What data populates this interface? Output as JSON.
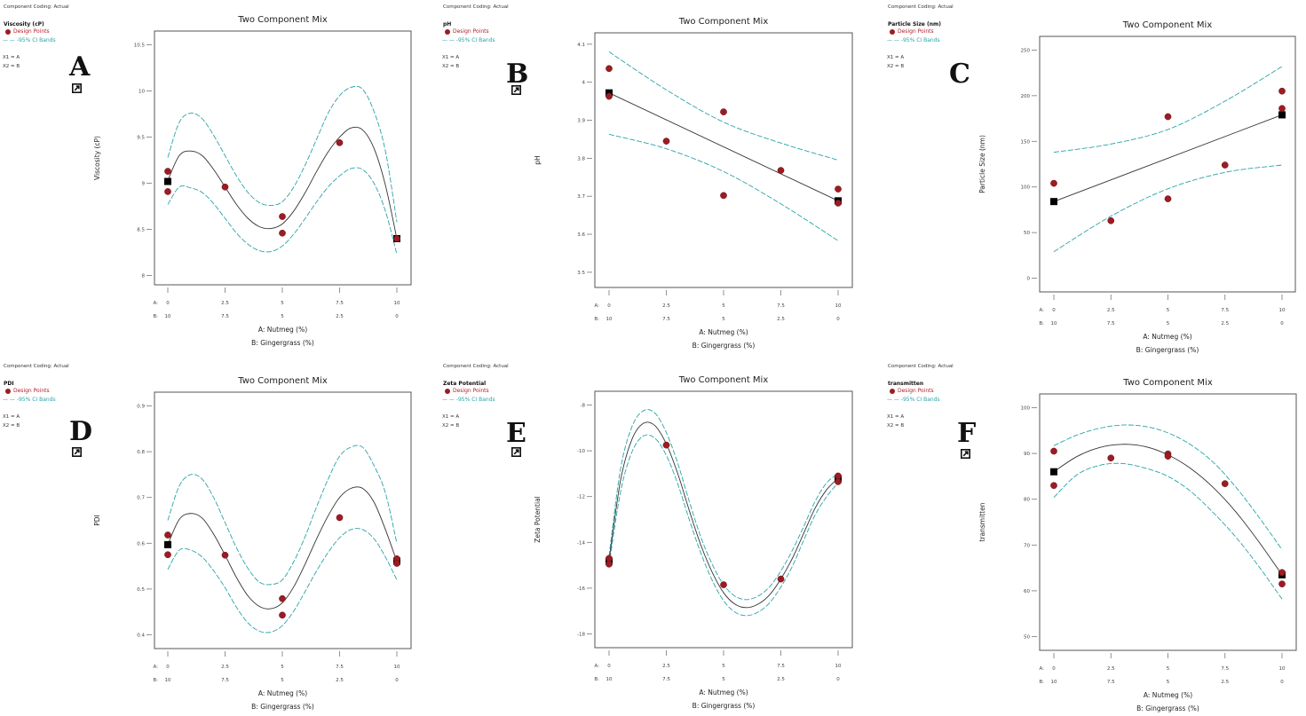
{
  "common": {
    "coding": "Component Coding: Actual",
    "design_points": "Design Points",
    "ci_bands": "-95% CI Bands",
    "x1": "X1 = A",
    "x2": "X2 = B",
    "title": "Two Component Mix",
    "xlabel_a": "A: Nutmeg (%)",
    "xlabel_b": "B: Gingergrass (%)",
    "a_prefix": "A:",
    "b_prefix": "B:",
    "a_ticks": [
      "0",
      "2.5",
      "5",
      "7.5",
      "10"
    ],
    "b_ticks": [
      "10",
      "7.5",
      "5",
      "2.5",
      "0"
    ]
  },
  "colors": {
    "points": "#9c1c24",
    "ci": "#2aa3a8",
    "fit": "#333333",
    "square": "#000000"
  },
  "chart_data": [
    {
      "id": "A",
      "type": "line",
      "letter": "A",
      "response": "Viscosity (cP)",
      "ylabel": "Viscosity (cP)",
      "ylim": [
        7.9,
        10.65
      ],
      "yticks": [
        "8",
        "8.5",
        "9",
        "9.5",
        "10",
        "10.5"
      ],
      "ytick_values": [
        8,
        8.5,
        9,
        9.5,
        10,
        10.5
      ],
      "fit": {
        "x": [
          0,
          0.5,
          1,
          1.5,
          2,
          2.5,
          3,
          3.5,
          4,
          4.5,
          5,
          5.5,
          6,
          6.5,
          7,
          7.5,
          8,
          8.5,
          9,
          9.5,
          10
        ],
        "y": [
          9.03,
          9.3,
          9.35,
          9.3,
          9.15,
          8.96,
          8.77,
          8.62,
          8.53,
          8.51,
          8.56,
          8.7,
          8.9,
          9.13,
          9.34,
          9.5,
          9.6,
          9.58,
          9.38,
          8.98,
          8.4
        ]
      },
      "ci_upper": {
        "x": [
          0,
          0.5,
          1,
          1.5,
          2,
          2.5,
          3,
          3.5,
          4,
          4.5,
          5,
          5.5,
          6,
          6.5,
          7,
          7.5,
          8,
          8.5,
          9,
          9.5,
          10
        ],
        "y": [
          9.28,
          9.66,
          9.76,
          9.7,
          9.52,
          9.3,
          9.08,
          8.9,
          8.79,
          8.76,
          8.8,
          8.96,
          9.2,
          9.48,
          9.76,
          9.95,
          10.04,
          10.02,
          9.78,
          9.35,
          8.58
        ]
      },
      "ci_lower": {
        "x": [
          0,
          0.5,
          1,
          1.5,
          2,
          2.5,
          3,
          3.5,
          4,
          4.5,
          5,
          5.5,
          6,
          6.5,
          7,
          7.5,
          8,
          8.5,
          9,
          9.5,
          10
        ],
        "y": [
          8.77,
          8.96,
          8.95,
          8.9,
          8.78,
          8.62,
          8.46,
          8.34,
          8.27,
          8.26,
          8.32,
          8.45,
          8.62,
          8.8,
          8.96,
          9.08,
          9.16,
          9.15,
          9.0,
          8.7,
          8.23
        ]
      },
      "points": [
        {
          "x": 0,
          "y": 9.13
        },
        {
          "x": 0,
          "y": 8.91
        },
        {
          "x": 2.5,
          "y": 8.96
        },
        {
          "x": 5,
          "y": 8.64
        },
        {
          "x": 5,
          "y": 8.46
        },
        {
          "x": 7.5,
          "y": 9.44
        },
        {
          "x": 10,
          "y": 8.4
        }
      ],
      "squares": [
        {
          "x": 0,
          "y": 9.02
        },
        {
          "x": 10,
          "y": 8.4
        }
      ]
    },
    {
      "id": "B",
      "type": "line",
      "letter": "B",
      "response": "pH",
      "ylabel": "pH",
      "ylim": [
        3.46,
        4.13
      ],
      "yticks": [
        "3.5",
        "3.6",
        "3.7",
        "3.8",
        "3.9",
        "4",
        "4.1"
      ],
      "ytick_values": [
        3.5,
        3.6,
        3.7,
        3.8,
        3.9,
        4.0,
        4.1
      ],
      "fit": {
        "x": [
          0,
          10
        ],
        "y": [
          3.972,
          3.688
        ]
      },
      "ci_upper": {
        "x": [
          0,
          2.5,
          5,
          7.5,
          10
        ],
        "y": [
          4.08,
          3.98,
          3.895,
          3.84,
          3.795
        ]
      },
      "ci_lower": {
        "x": [
          0,
          2.5,
          5,
          7.5,
          10
        ],
        "y": [
          3.863,
          3.825,
          3.765,
          3.68,
          3.583
        ]
      },
      "points": [
        {
          "x": 0,
          "y": 4.036
        },
        {
          "x": 0,
          "y": 3.963
        },
        {
          "x": 2.5,
          "y": 3.845
        },
        {
          "x": 5,
          "y": 3.922
        },
        {
          "x": 5,
          "y": 3.702
        },
        {
          "x": 7.5,
          "y": 3.768
        },
        {
          "x": 10,
          "y": 3.719
        },
        {
          "x": 10,
          "y": 3.682
        }
      ],
      "squares": [
        {
          "x": 0,
          "y": 3.972
        },
        {
          "x": 10,
          "y": 3.688
        }
      ]
    },
    {
      "id": "C",
      "type": "line",
      "letter": "C",
      "response": "Particle Size (nm)",
      "ylabel": "Particle Size (nm)",
      "ylim": [
        -15,
        265
      ],
      "yticks": [
        "0",
        "50",
        "100",
        "150",
        "200",
        "250"
      ],
      "ytick_values": [
        0,
        50,
        100,
        150,
        200,
        250
      ],
      "fit": {
        "x": [
          0,
          10
        ],
        "y": [
          84,
          179
        ]
      },
      "ci_upper": {
        "x": [
          0,
          2.5,
          5,
          7.5,
          10
        ],
        "y": [
          138,
          147,
          163,
          194,
          232
        ]
      },
      "ci_lower": {
        "x": [
          0,
          2.5,
          5,
          7.5,
          10
        ],
        "y": [
          29,
          68,
          98,
          116,
          124
        ]
      },
      "points": [
        {
          "x": 0,
          "y": 104
        },
        {
          "x": 2.5,
          "y": 63
        },
        {
          "x": 5,
          "y": 177
        },
        {
          "x": 5,
          "y": 87
        },
        {
          "x": 7.5,
          "y": 124
        },
        {
          "x": 10,
          "y": 205
        },
        {
          "x": 10,
          "y": 186
        }
      ],
      "squares": [
        {
          "x": 0,
          "y": 84
        },
        {
          "x": 10,
          "y": 179
        }
      ]
    },
    {
      "id": "D",
      "type": "line",
      "letter": "D",
      "response": "PDI",
      "ylabel": "PDI",
      "ylim": [
        0.37,
        0.93
      ],
      "yticks": [
        "0.4",
        "0.5",
        "0.6",
        "0.7",
        "0.8",
        "0.9"
      ],
      "ytick_values": [
        0.4,
        0.5,
        0.6,
        0.7,
        0.8,
        0.9
      ],
      "fit": {
        "x": [
          0,
          0.5,
          1,
          1.5,
          2,
          2.5,
          3,
          3.5,
          4,
          4.5,
          5,
          5.5,
          6,
          6.5,
          7,
          7.5,
          8,
          8.5,
          9,
          9.5,
          10
        ],
        "y": [
          0.597,
          0.652,
          0.665,
          0.655,
          0.62,
          0.574,
          0.525,
          0.485,
          0.462,
          0.457,
          0.47,
          0.505,
          0.555,
          0.61,
          0.66,
          0.7,
          0.72,
          0.72,
          0.69,
          0.63,
          0.56
        ]
      },
      "ci_upper": {
        "x": [
          0,
          0.5,
          1,
          1.5,
          2,
          2.5,
          3,
          3.5,
          4,
          4.5,
          5,
          5.5,
          6,
          6.5,
          7,
          7.5,
          8,
          8.5,
          9,
          9.5,
          10
        ],
        "y": [
          0.65,
          0.725,
          0.75,
          0.74,
          0.7,
          0.645,
          0.59,
          0.545,
          0.515,
          0.51,
          0.52,
          0.56,
          0.615,
          0.68,
          0.74,
          0.79,
          0.81,
          0.81,
          0.77,
          0.71,
          0.6
        ]
      },
      "ci_lower": {
        "x": [
          0,
          0.5,
          1,
          1.5,
          2,
          2.5,
          3,
          3.5,
          4,
          4.5,
          5,
          5.5,
          6,
          6.5,
          7,
          7.5,
          8,
          8.5,
          9,
          9.5,
          10
        ],
        "y": [
          0.543,
          0.585,
          0.585,
          0.57,
          0.54,
          0.503,
          0.46,
          0.426,
          0.408,
          0.406,
          0.42,
          0.452,
          0.495,
          0.54,
          0.58,
          0.612,
          0.63,
          0.63,
          0.61,
          0.57,
          0.52
        ]
      },
      "points": [
        {
          "x": 0,
          "y": 0.618
        },
        {
          "x": 0,
          "y": 0.575
        },
        {
          "x": 2.5,
          "y": 0.574
        },
        {
          "x": 5,
          "y": 0.479
        },
        {
          "x": 5,
          "y": 0.443
        },
        {
          "x": 7.5,
          "y": 0.656
        },
        {
          "x": 10,
          "y": 0.566
        },
        {
          "x": 10,
          "y": 0.556
        }
      ],
      "squares": [
        {
          "x": 0,
          "y": 0.597
        },
        {
          "x": 10,
          "y": 0.561
        }
      ]
    },
    {
      "id": "E",
      "type": "line",
      "letter": "E",
      "response": "Zeta Potential",
      "ylabel": "Zeta Potential",
      "ylim": [
        -18.6,
        -7.4
      ],
      "yticks": [
        "-18",
        "-16",
        "-14",
        "-12",
        "-10",
        "-8"
      ],
      "ytick_values": [
        -18,
        -16,
        -14,
        -12,
        -10,
        -8
      ],
      "fit": {
        "x": [
          0,
          0.5,
          1,
          1.5,
          2,
          2.5,
          3,
          3.5,
          4,
          4.5,
          5,
          5.5,
          6,
          6.5,
          7,
          7.5,
          8,
          8.5,
          9,
          9.5,
          10
        ],
        "y": [
          -14.8,
          -11.3,
          -9.5,
          -8.8,
          -8.9,
          -9.7,
          -11.0,
          -12.6,
          -14.1,
          -15.3,
          -16.2,
          -16.7,
          -16.85,
          -16.7,
          -16.3,
          -15.6,
          -14.7,
          -13.6,
          -12.5,
          -11.7,
          -11.2
        ]
      },
      "ci_upper": {
        "x": [
          0,
          0.5,
          1,
          1.5,
          2,
          2.5,
          3,
          3.5,
          4,
          4.5,
          5,
          5.5,
          6,
          6.5,
          7,
          7.5,
          8,
          8.5,
          9,
          9.5,
          10
        ],
        "y": [
          -14.6,
          -10.8,
          -8.95,
          -8.25,
          -8.35,
          -9.2,
          -10.55,
          -12.2,
          -13.75,
          -14.95,
          -15.85,
          -16.35,
          -16.5,
          -16.35,
          -15.95,
          -15.25,
          -14.35,
          -13.3,
          -12.2,
          -11.4,
          -11.0
        ]
      },
      "ci_lower": {
        "x": [
          0,
          0.5,
          1,
          1.5,
          2,
          2.5,
          3,
          3.5,
          4,
          4.5,
          5,
          5.5,
          6,
          6.5,
          7,
          7.5,
          8,
          8.5,
          9,
          9.5,
          10
        ],
        "y": [
          -15.0,
          -11.8,
          -10.05,
          -9.35,
          -9.45,
          -10.2,
          -11.45,
          -13.0,
          -14.45,
          -15.65,
          -16.55,
          -17.05,
          -17.2,
          -17.05,
          -16.65,
          -15.95,
          -15.05,
          -13.9,
          -12.8,
          -12.0,
          -11.4
        ]
      },
      "points": [
        {
          "x": 0,
          "y": -14.7
        },
        {
          "x": 0,
          "y": -14.95
        },
        {
          "x": 2.5,
          "y": -9.75
        },
        {
          "x": 5,
          "y": -15.85
        },
        {
          "x": 7.5,
          "y": -15.6
        },
        {
          "x": 10,
          "y": -11.1
        },
        {
          "x": 10,
          "y": -11.35
        }
      ],
      "squares": [
        {
          "x": 0,
          "y": -14.82
        },
        {
          "x": 10,
          "y": -11.22
        }
      ]
    },
    {
      "id": "F",
      "type": "line",
      "letter": "F",
      "response": "transmitten",
      "ylabel": "transmitten",
      "ylim": [
        47,
        103
      ],
      "yticks": [
        "50",
        "60",
        "70",
        "80",
        "90",
        "100"
      ],
      "ytick_values": [
        50,
        60,
        70,
        80,
        90,
        100
      ],
      "fit": {
        "x": [
          0,
          1,
          2,
          3,
          4,
          5,
          6,
          7,
          8,
          9,
          10
        ],
        "y": [
          86,
          89.3,
          91.3,
          92,
          91.5,
          89.7,
          86.7,
          82.5,
          77.1,
          70.6,
          63.5
        ]
      },
      "ci_upper": {
        "x": [
          0,
          1,
          2,
          3,
          4,
          5,
          6,
          7,
          8,
          9,
          10
        ],
        "y": [
          91.7,
          94,
          95.5,
          96.2,
          95.9,
          94.5,
          91.9,
          88,
          82.5,
          76,
          69
        ]
      },
      "ci_lower": {
        "x": [
          0,
          1,
          2,
          3,
          4,
          5,
          6,
          7,
          8,
          9,
          10
        ],
        "y": [
          80.4,
          85.3,
          87.4,
          87.8,
          86.8,
          85,
          81.7,
          77,
          71.6,
          65.2,
          58.2
        ]
      },
      "points": [
        {
          "x": 0,
          "y": 90.5
        },
        {
          "x": 0,
          "y": 83
        },
        {
          "x": 2.5,
          "y": 89
        },
        {
          "x": 5,
          "y": 89.9
        },
        {
          "x": 5,
          "y": 89.4
        },
        {
          "x": 7.5,
          "y": 83.4
        },
        {
          "x": 10,
          "y": 64
        },
        {
          "x": 10,
          "y": 61.5
        }
      ],
      "squares": [
        {
          "x": 0,
          "y": 86
        },
        {
          "x": 10,
          "y": 63.5
        }
      ]
    }
  ]
}
